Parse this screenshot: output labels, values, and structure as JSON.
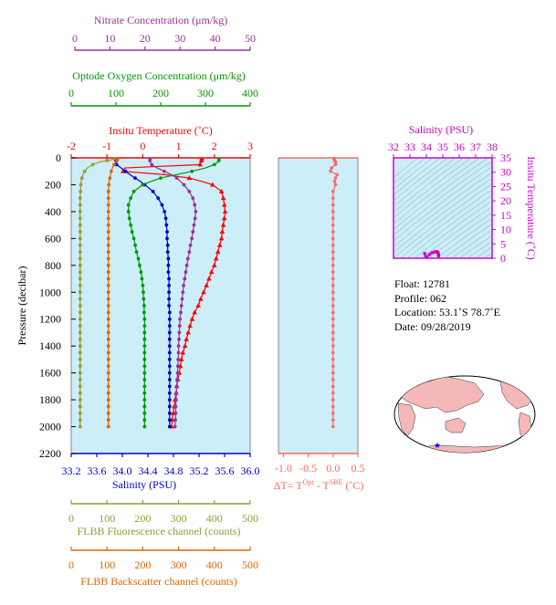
{
  "colors": {
    "temperature": "#ff0000",
    "salinity": "#0000cc",
    "oxygen": "#009900",
    "nitrate": "#993399",
    "fluorescence": "#999933",
    "backscatter": "#dd6600",
    "delta_t": "#ff6666",
    "ts_accent": "#cc00cc",
    "plot_bg": "#cceef8",
    "map_land": "#f4b8b8",
    "float_marker": "#0000ff"
  },
  "axes": {
    "nitrate": {
      "title": "Nitrate Concentration (μm/kg)",
      "ticks": [
        "0",
        "10",
        "20",
        "30",
        "40",
        "50"
      ],
      "range": [
        0,
        50
      ]
    },
    "oxygen": {
      "title": "Optode Oxygen Concentration (μm/kg)",
      "ticks": [
        "0",
        "100",
        "200",
        "300",
        "400"
      ],
      "range": [
        0,
        400
      ]
    },
    "temperature": {
      "title": "Insitu Temperature (˚C)",
      "ticks": [
        "-2",
        "-1",
        "0",
        "1",
        "2",
        "3"
      ],
      "range": [
        -2,
        3
      ]
    },
    "pressure": {
      "title": "Pressure (decibar)",
      "ticks": [
        "0",
        "200",
        "400",
        "600",
        "800",
        "1000",
        "1200",
        "1400",
        "1600",
        "1800",
        "2000",
        "2200"
      ],
      "range": [
        0,
        2200
      ]
    },
    "salinity": {
      "title": "Salinity (PSU)",
      "ticks": [
        "33.2",
        "33.6",
        "34.0",
        "34.4",
        "34.8",
        "35.2",
        "35.6",
        "36.0"
      ],
      "range": [
        33.2,
        36.0
      ]
    },
    "delta_t": {
      "title": "ΔT= T",
      "sup1": "Opt",
      "mid": " - T",
      "sup2": "SBE",
      "end": " (˚C)",
      "ticks": [
        "-1.0",
        "-0.5",
        "0.0",
        "0.5"
      ],
      "range": [
        -1.1,
        0.5
      ]
    },
    "fluorescence": {
      "title": "FLBB Fluorescence channel (counts)",
      "ticks": [
        "0",
        "100",
        "200",
        "300",
        "400",
        "500"
      ],
      "range": [
        0,
        500
      ]
    },
    "backscatter": {
      "title": "FLBB Backscatter channel (counts)",
      "ticks": [
        "0",
        "100",
        "200",
        "300",
        "400",
        "500"
      ],
      "range": [
        0,
        500
      ]
    },
    "ts_salinity": {
      "title": "Salinity (PSU)",
      "ticks": [
        "32",
        "33",
        "34",
        "35",
        "36",
        "37",
        "38"
      ],
      "range": [
        32,
        38
      ]
    },
    "ts_temperature": {
      "title": "Insitu Temperature (˚C)",
      "ticks": [
        "0",
        "5",
        "10",
        "15",
        "20",
        "25",
        "30",
        "35"
      ],
      "range": [
        0,
        35
      ]
    }
  },
  "info": {
    "float": "Float:  12781",
    "profile": "Profile:  062",
    "location": "Location:  53.1˚S  78.7˚E",
    "date": "Date:  09/28/2019"
  },
  "chart_data": [
    {
      "type": "line",
      "name": "profile",
      "pressure": [
        5,
        10,
        20,
        30,
        50,
        75,
        100,
        125,
        150,
        175,
        200,
        250,
        300,
        350,
        400,
        450,
        500,
        550,
        600,
        650,
        700,
        750,
        800,
        850,
        900,
        950,
        1000,
        1050,
        1100,
        1150,
        1200,
        1250,
        1300,
        1350,
        1400,
        1450,
        1500,
        1550,
        1600,
        1650,
        1700,
        1750,
        1800,
        1850,
        1900,
        1950,
        2000
      ],
      "series": [
        {
          "key": "temperature",
          "axis": "temperature",
          "values": [
            1.65,
            1.65,
            1.64,
            1.63,
            1.6,
            -0.5,
            -0.55,
            0.6,
            1.3,
            1.65,
            1.95,
            2.2,
            2.25,
            2.28,
            2.3,
            2.28,
            2.25,
            2.22,
            2.2,
            2.15,
            2.1,
            2.05,
            2.0,
            1.92,
            1.85,
            1.78,
            1.7,
            1.62,
            1.55,
            1.45,
            1.38,
            1.32,
            1.27,
            1.22,
            1.18,
            1.12,
            1.08,
            1.05,
            1.02,
            0.98,
            0.95,
            0.93,
            0.9,
            0.88,
            0.85,
            0.82,
            0.8
          ]
        },
        {
          "key": "salinity",
          "axis": "salinity",
          "values": [
            33.9,
            33.9,
            33.9,
            33.9,
            33.91,
            33.98,
            34.05,
            34.12,
            34.2,
            34.28,
            34.35,
            34.48,
            34.56,
            34.62,
            34.66,
            34.68,
            34.69,
            34.7,
            34.7,
            34.71,
            34.71,
            34.72,
            34.72,
            34.72,
            34.73,
            34.73,
            34.73,
            34.73,
            34.73,
            34.74,
            34.74,
            34.74,
            34.74,
            34.74,
            34.74,
            34.74,
            34.74,
            34.74,
            34.74,
            34.74,
            34.74,
            34.74,
            34.74,
            34.74,
            34.74,
            34.74,
            34.74
          ]
        },
        {
          "key": "oxygen",
          "axis": "oxygen",
          "values": [
            330,
            330,
            330,
            328,
            320,
            300,
            270,
            235,
            200,
            178,
            160,
            140,
            133,
            128,
            128,
            130,
            133,
            136,
            140,
            143,
            146,
            150,
            153,
            156,
            158,
            160,
            161,
            162,
            163,
            163,
            164,
            164,
            164,
            164,
            164,
            164,
            164,
            164,
            164,
            164,
            164,
            164,
            164,
            164,
            164,
            164,
            164
          ]
        },
        {
          "key": "nitrate",
          "axis": "nitrate",
          "values": [
            22,
            22,
            22,
            22,
            22.5,
            24,
            26,
            28,
            29.5,
            30.5,
            31.5,
            33,
            34,
            34.5,
            34.8,
            34.6,
            34.3,
            34,
            33.7,
            33.3,
            33,
            32.6,
            32.3,
            32,
            31.7,
            31.4,
            31.2,
            31,
            30.8,
            30.6,
            30.4,
            30.3,
            30.2,
            30.1,
            30,
            30,
            29.9,
            29.8,
            29.7,
            29.6,
            29.5,
            29.4,
            29.3,
            29.2,
            29.2,
            29.1,
            29
          ]
        },
        {
          "key": "fluorescence",
          "axis": "fluorescence",
          "values": [
            120,
            120,
            100,
            80,
            60,
            45,
            38,
            33,
            30,
            28,
            27,
            26,
            25,
            25,
            25,
            25,
            25,
            25,
            25,
            25,
            25,
            25,
            25,
            25,
            25,
            25,
            25,
            25,
            25,
            25,
            25,
            25,
            25,
            25,
            25,
            25,
            25,
            25,
            25,
            25,
            25,
            25,
            25,
            25,
            25,
            25,
            25
          ]
        },
        {
          "key": "backscatter",
          "axis": "backscatter",
          "values": [
            130,
            130,
            128,
            125,
            120,
            115,
            112,
            110,
            108,
            106,
            105,
            104,
            104,
            104,
            104,
            104,
            104,
            104,
            104,
            104,
            104,
            104,
            104,
            104,
            104,
            104,
            104,
            104,
            104,
            104,
            104,
            104,
            104,
            104,
            104,
            104,
            104,
            104,
            104,
            104,
            104,
            104,
            104,
            104,
            104,
            104,
            104
          ]
        },
        {
          "key": "delta_t",
          "axis": "delta_t",
          "values": [
            0.02,
            0.02,
            0.03,
            0.05,
            0.05,
            -0.03,
            -0.05,
            0.08,
            0.05,
            0.03,
            0.05,
            0.0,
            0.0,
            0.0,
            0.0,
            0.0,
            0.0,
            0.0,
            0.0,
            0.0,
            0.0,
            0.0,
            0.0,
            0.0,
            0.0,
            0.0,
            0.0,
            0.0,
            0.0,
            0.0,
            0.0,
            0.0,
            0.0,
            0.0,
            0.0,
            0.0,
            0.0,
            0.0,
            0.0,
            0.0,
            0.0,
            0.0,
            0.0,
            0.0,
            0.0,
            0.0,
            0.0
          ]
        }
      ]
    },
    {
      "type": "scatter",
      "name": "ts-diagram",
      "xlabel": "Salinity (PSU)",
      "ylabel": "Insitu Temperature (˚C)",
      "xlim": [
        32,
        38
      ],
      "ylim": [
        0,
        35
      ],
      "x": [
        33.9,
        33.9,
        33.95,
        34.05,
        34.2,
        34.35,
        34.5,
        34.6,
        34.66,
        34.7,
        34.72,
        34.74,
        34.74
      ],
      "y": [
        1.65,
        1.6,
        -0.5,
        0.6,
        1.3,
        1.95,
        2.2,
        2.28,
        2.25,
        2.0,
        1.7,
        1.2,
        0.8
      ]
    }
  ]
}
